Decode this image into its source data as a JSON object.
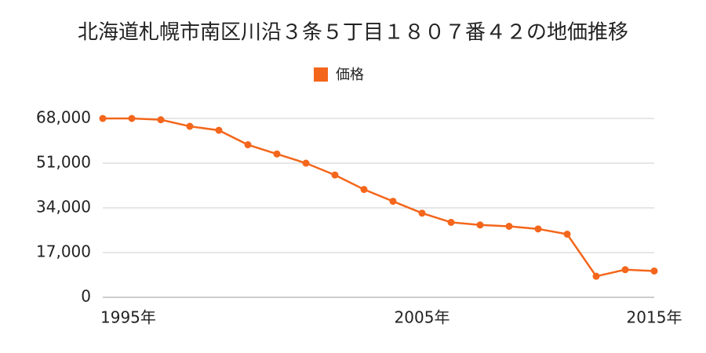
{
  "chart_data": {
    "type": "line",
    "title": "北海道札幌市南区川沿３条５丁目１８０７番４２の地価推移",
    "categories": [
      "1995年",
      null,
      null,
      null,
      null,
      null,
      null,
      null,
      null,
      null,
      null,
      "2005年",
      null,
      null,
      null,
      null,
      null,
      null,
      null,
      "2015年"
    ],
    "series": [
      {
        "name": "価格",
        "color": "#f4661b",
        "values": [
          68000,
          68000,
          67500,
          65000,
          63500,
          58000,
          54500,
          51000,
          46500,
          41000,
          36500,
          32000,
          28500,
          27500,
          27000,
          26000,
          24000,
          8000,
          10500,
          10000
        ]
      }
    ],
    "ylim": [
      0,
      68000
    ],
    "yticks": [
      0,
      {
        "value": 17000,
        "label": "17,000"
      },
      {
        "value": 34000,
        "label": "34,000"
      },
      {
        "value": 51000,
        "label": "51,000"
      },
      {
        "value": 68000,
        "label": "68,000"
      }
    ],
    "grid": true
  }
}
